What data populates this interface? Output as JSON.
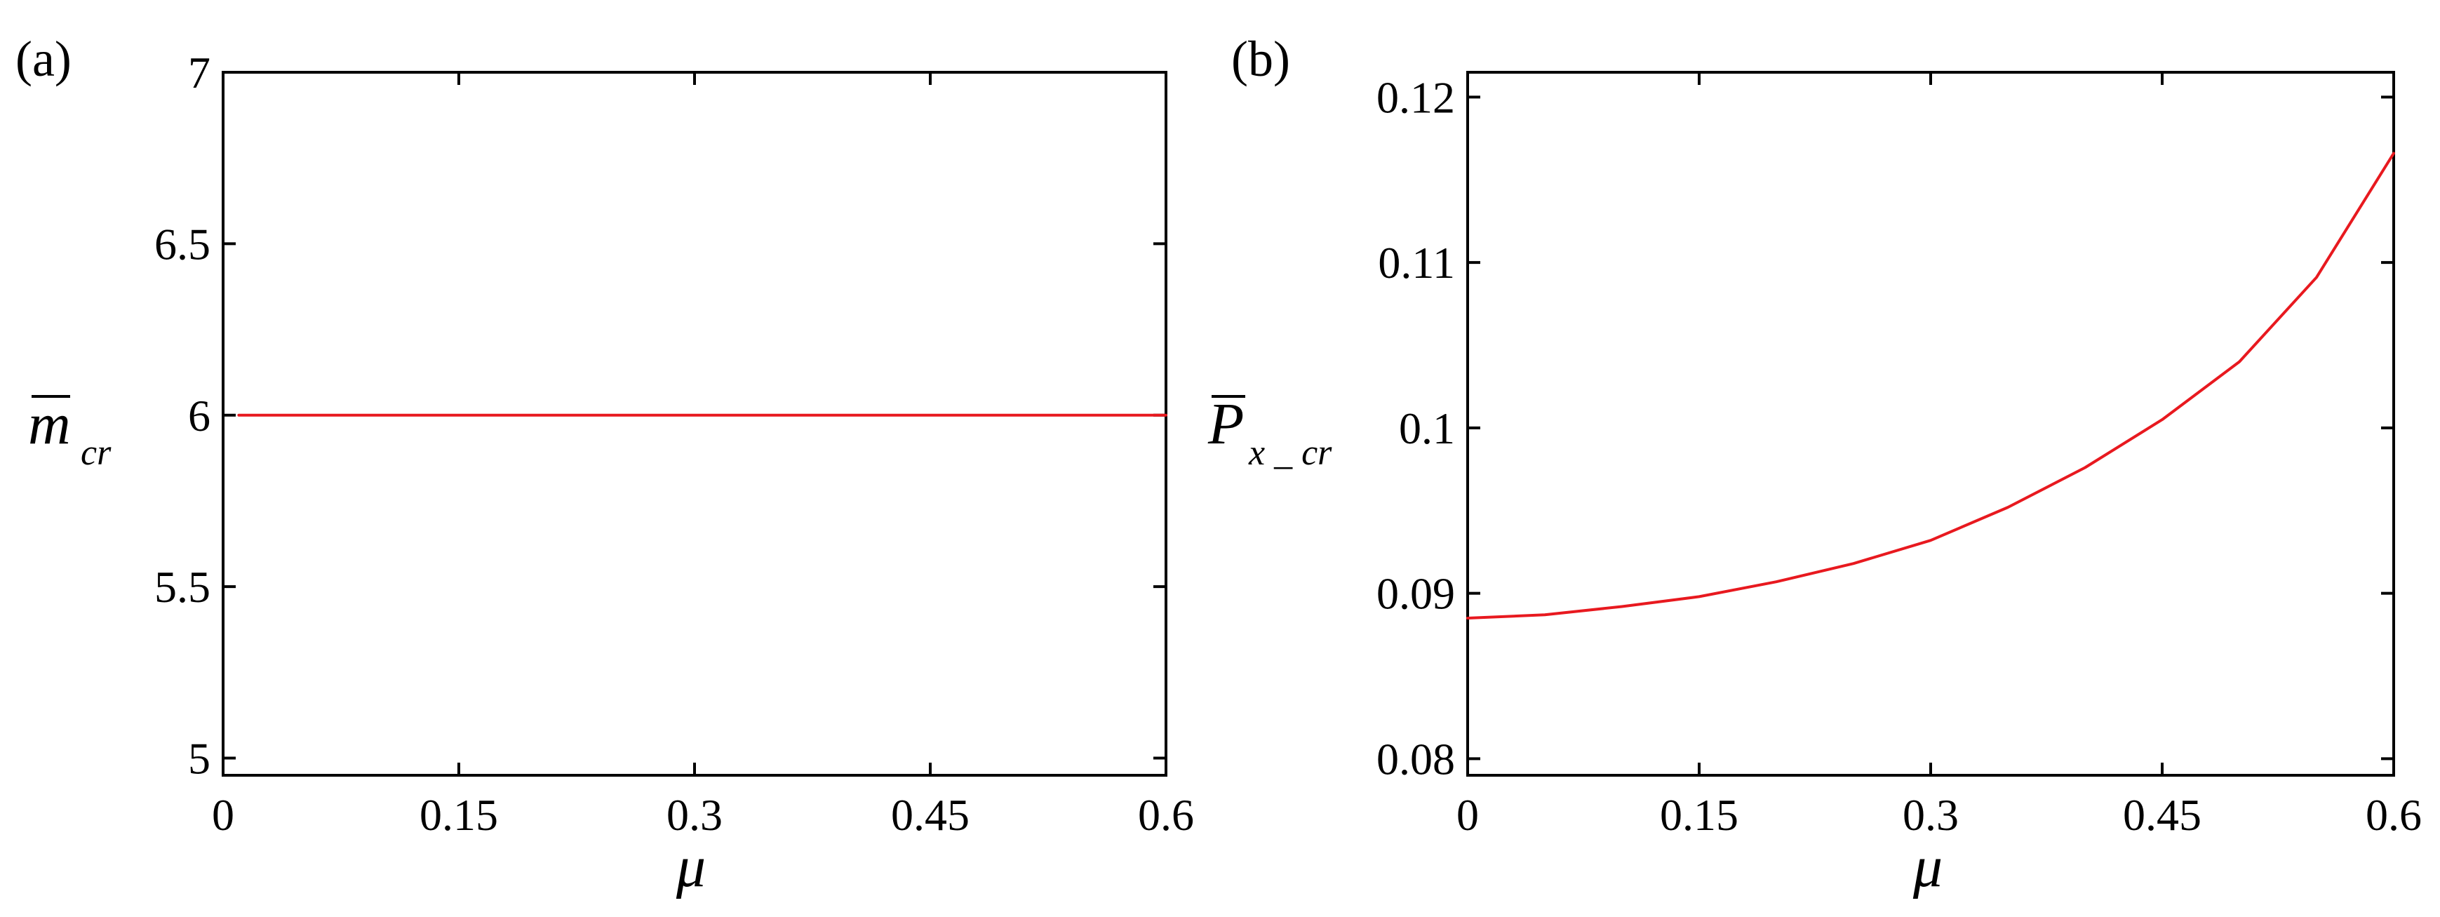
{
  "chart_data": [
    {
      "panel_label": "(a)",
      "type": "line",
      "xlabel": "μ",
      "ylabel": {
        "main": "m",
        "sub": "cr",
        "overbar": true
      },
      "xlim": [
        0,
        0.6
      ],
      "ylim": [
        4.95,
        7.0
      ],
      "xticks": [
        0,
        0.15,
        0.3,
        0.45,
        0.6
      ],
      "xtick_labels": [
        "0",
        "0.15",
        "0.3",
        "0.45",
        "0.6"
      ],
      "yticks": [
        5,
        5.5,
        6,
        6.5,
        7
      ],
      "ytick_labels": [
        "5",
        "5.5",
        "6",
        "6.5",
        "7"
      ],
      "grid": false,
      "series": [
        {
          "color": "#e8191f",
          "x": [
            0.01,
            0.1,
            0.2,
            0.3,
            0.4,
            0.5,
            0.6
          ],
          "y": [
            6,
            6,
            6,
            6,
            6,
            6,
            6
          ]
        }
      ]
    },
    {
      "panel_label": "(b)",
      "type": "line",
      "xlabel": "μ",
      "ylabel": {
        "main": "P",
        "sub": "x _ cr",
        "overbar": true
      },
      "xlim": [
        0,
        0.6
      ],
      "ylim": [
        0.079,
        0.1215
      ],
      "xticks": [
        0,
        0.15,
        0.3,
        0.45,
        0.6
      ],
      "xtick_labels": [
        "0",
        "0.15",
        "0.3",
        "0.45",
        "0.6"
      ],
      "yticks": [
        0.08,
        0.09,
        0.1,
        0.11,
        0.12
      ],
      "ytick_labels": [
        "0.08",
        "0.09",
        "0.1",
        "0.11",
        "0.12"
      ],
      "grid": false,
      "series": [
        {
          "color": "#e8191f",
          "x": [
            0.0,
            0.05,
            0.1,
            0.15,
            0.2,
            0.25,
            0.3,
            0.35,
            0.4,
            0.45,
            0.5,
            0.55,
            0.6
          ],
          "y": [
            0.0885,
            0.0887,
            0.0892,
            0.0898,
            0.0907,
            0.0918,
            0.0932,
            0.0952,
            0.0976,
            0.1005,
            0.104,
            0.1091,
            0.1166
          ]
        }
      ]
    }
  ]
}
